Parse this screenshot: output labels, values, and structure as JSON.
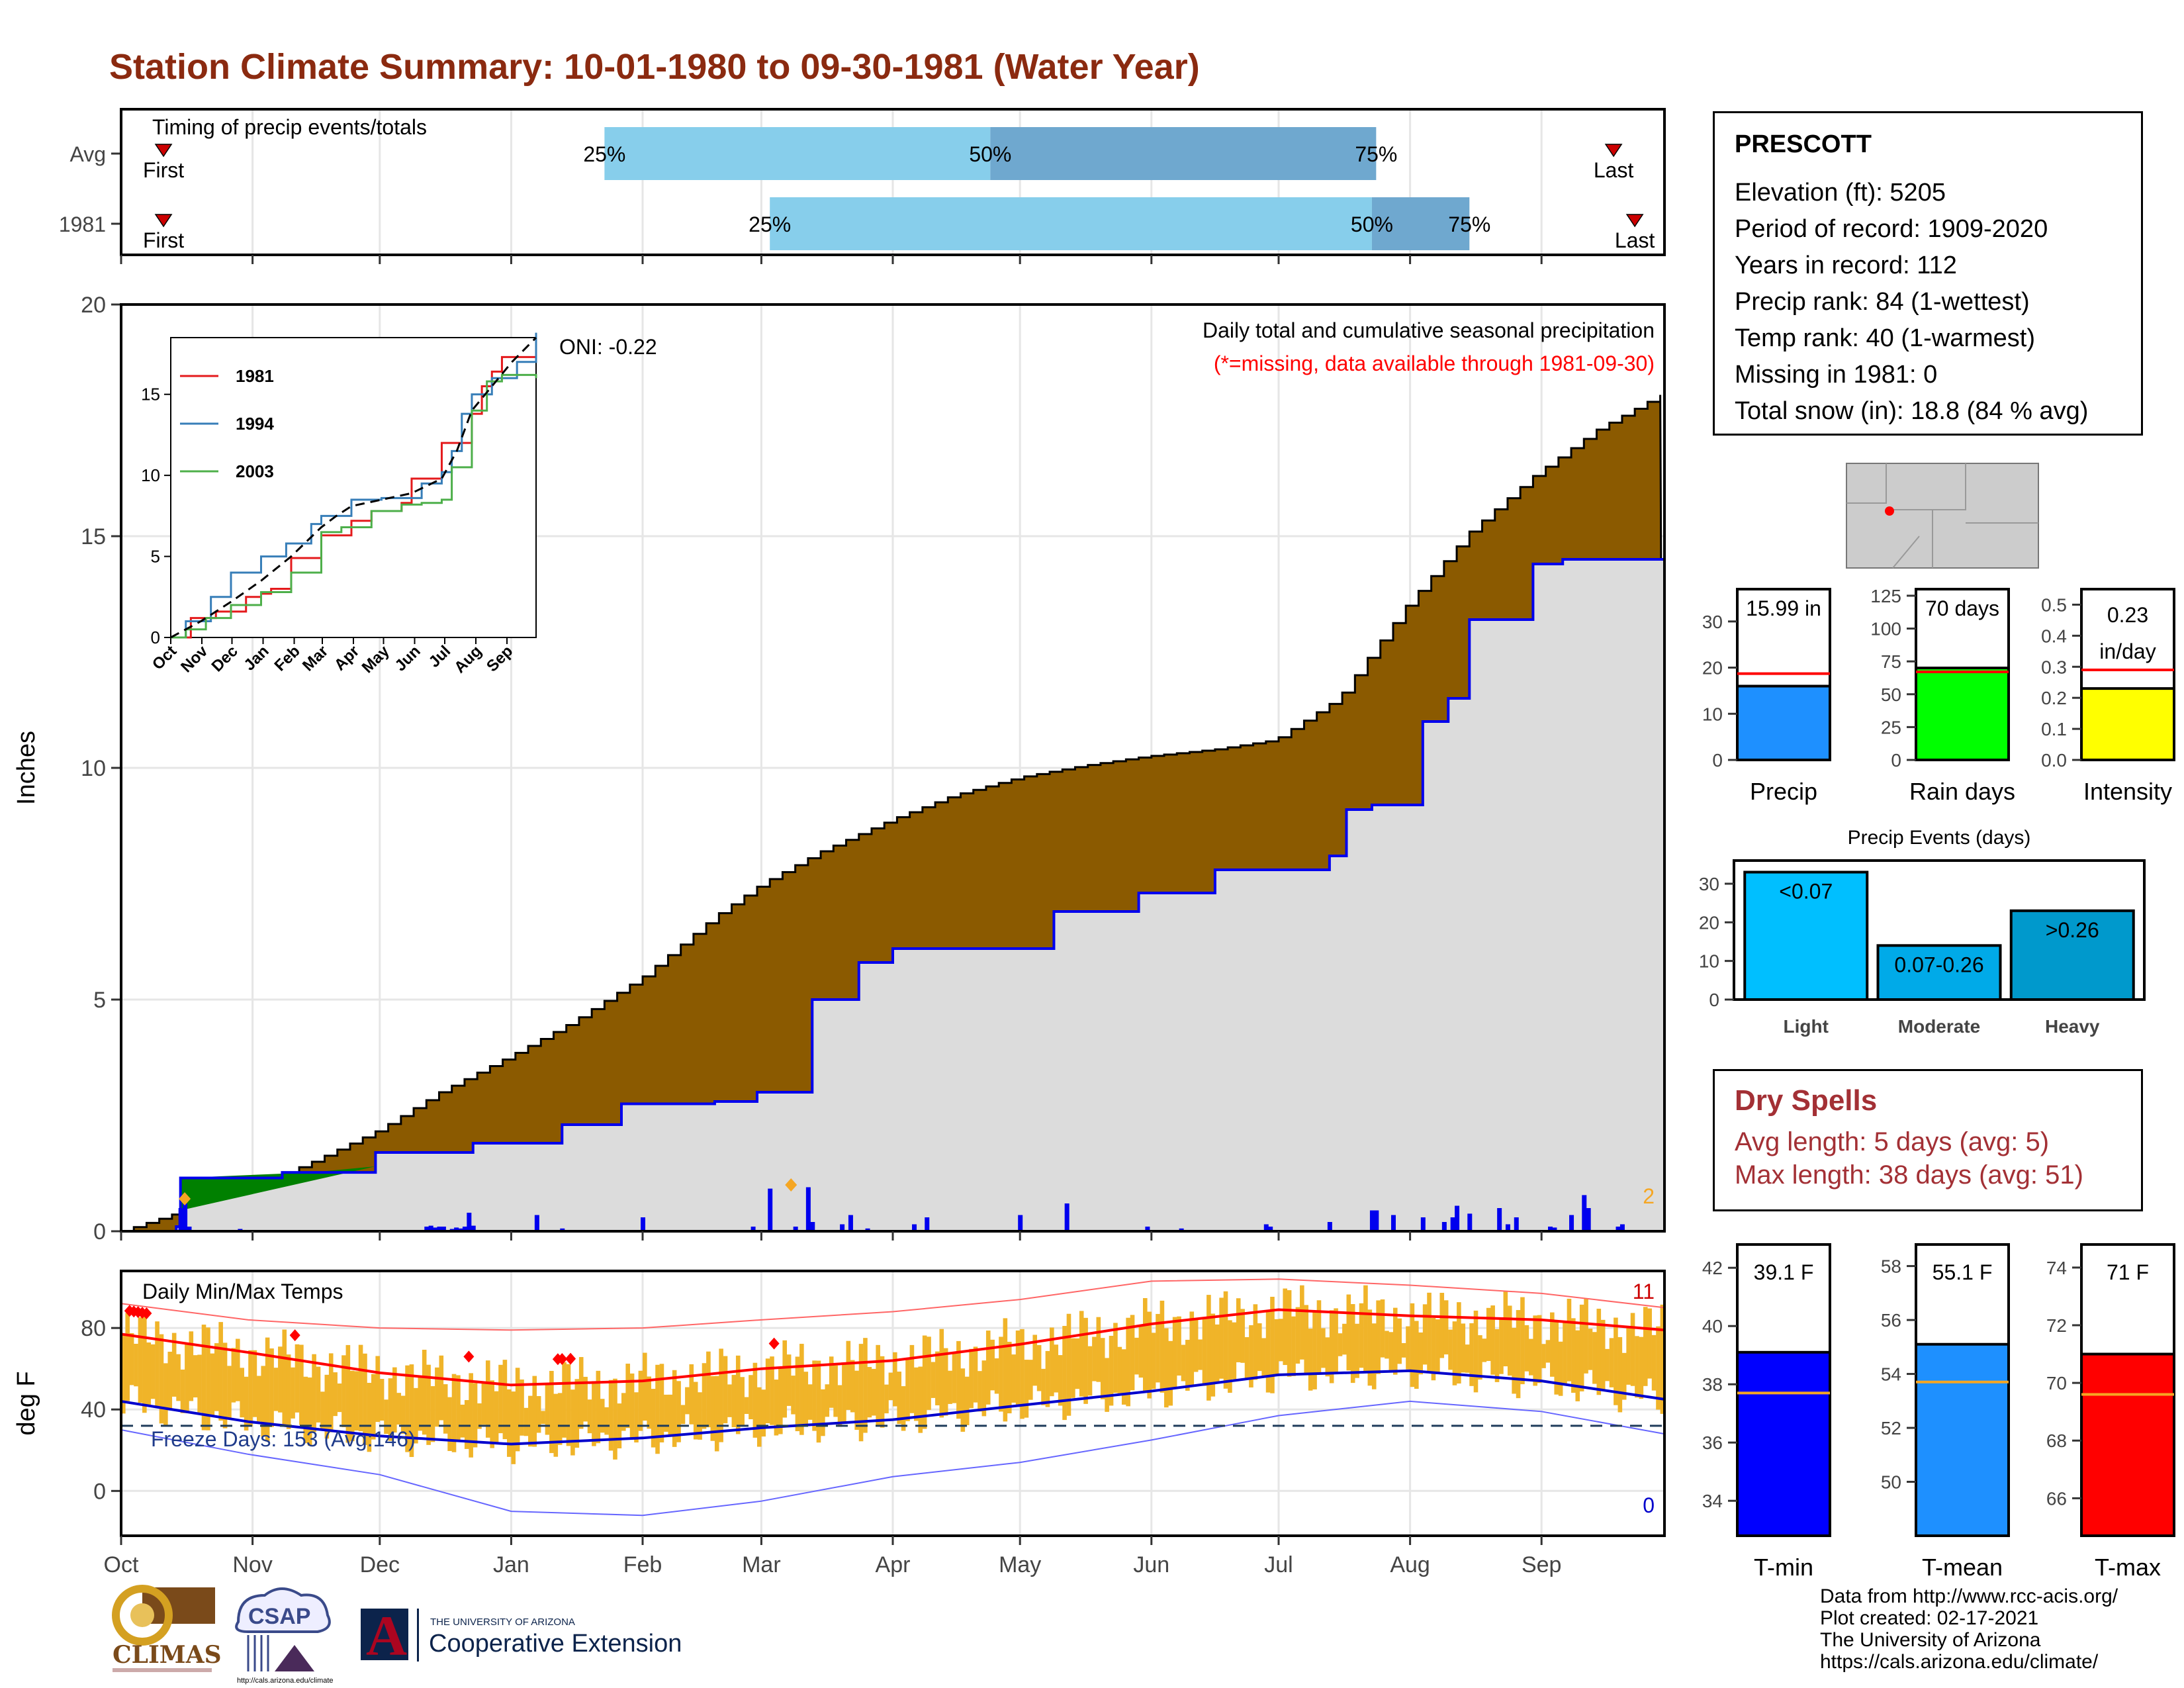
{
  "title": "Station Climate Summary: 10-01-1980 to 09-30-1981 (Water Year)",
  "station": {
    "name": "PRESCOTT",
    "lines": [
      "Elevation (ft): 5205",
      "Period of record: 1909-2020",
      "Years in record: 112",
      "Precip rank: 84 (1-wettest)",
      "Temp rank: 40 (1-warmest)",
      "Missing in 1981: 0",
      "Total snow (in): 18.8 (84 % avg)"
    ]
  },
  "dry_spells": {
    "title": "Dry Spells",
    "avg_length": "Avg length: 5 days (avg: 5)",
    "max_length": "Max length: 38 days (avg: 51)"
  },
  "credits": [
    "Data from http://www.rcc-acis.org/",
    "Plot created: 02-17-2021",
    "The University of Arizona",
    "https://cals.arizona.edu/climate/"
  ],
  "logos": {
    "climas": "CLIMAS",
    "csap": "CSAP",
    "csap_url": "http://cals.arizona.edu/climate",
    "ua_letter": "A",
    "ua_small": "THE UNIVERSITY OF ARIZONA",
    "ua_big": "Cooperative Extension"
  },
  "colors": {
    "title": "#8b2a10",
    "cum_avg": "#8b5a00",
    "cum_obs": "#dcdcdc",
    "cum_obs_line": "#0000ee",
    "wet_surplus": "#008000",
    "bar_light": "#87ceeb",
    "bar_dark": "#6fa8cf",
    "temp_bar": "#f0b429",
    "tmax_line": "#ff0000",
    "tmin_line": "#0000cc",
    "dry": "#a33035"
  },
  "chart_data": [
    {
      "type": "bar",
      "name": "timing",
      "label": "Timing of precip events/totals",
      "months": [
        "Oct",
        "Nov",
        "Dec",
        "Jan",
        "Feb",
        "Mar",
        "Apr",
        "May",
        "Jun",
        "Jul",
        "Aug",
        "Sep"
      ],
      "rows": [
        {
          "label": "Avg",
          "first_day": 10,
          "last_day": 352,
          "p25_day": 114,
          "p50_day": 205,
          "p75_day": 296,
          "first_label": "First",
          "last_label": "Last",
          "p25_label": "25%",
          "p50_label": "50%",
          "p75_label": "75%"
        },
        {
          "label": "1981",
          "first_day": 10,
          "last_day": 357,
          "p25_day": 153,
          "p50_day": 295,
          "p75_day": 318,
          "first_label": "First",
          "last_label": "Last",
          "p25_label": "25%",
          "p50_label": "50%",
          "p75_label": "75%"
        }
      ]
    },
    {
      "type": "area",
      "name": "cumulative_precip",
      "ylabel": "Inches",
      "ylim": [
        0,
        20
      ],
      "yticks": [
        0,
        5,
        10,
        15,
        20
      ],
      "xticks": [
        "Oct",
        "Nov",
        "Dec",
        "Jan",
        "Feb",
        "Mar",
        "Apr",
        "May",
        "Jun",
        "Jul",
        "Aug",
        "Sep"
      ],
      "note": "Daily total and cumulative seasonal precipitation",
      "missing_note": "(*=missing, data available through 1981-09-30)",
      "oni": "ONI: -0.22",
      "count_label": "2",
      "avg_cumulative": {
        "day": [
          0,
          10,
          20,
          31,
          45,
          61,
          75,
          92,
          106,
          123,
          140,
          151,
          165,
          182,
          196,
          212,
          227,
          242,
          258,
          272,
          287,
          295,
          303,
          318,
          333,
          348,
          364
        ],
        "value": [
          0,
          0.3,
          0.6,
          0.95,
          1.5,
          2.2,
          3.0,
          3.8,
          4.5,
          5.5,
          6.8,
          7.5,
          8.2,
          8.9,
          9.4,
          9.8,
          10.05,
          10.25,
          10.4,
          10.6,
          11.5,
          12.5,
          13.5,
          15.1,
          16.3,
          17.3,
          18.1
        ]
      },
      "obs_cumulative": {
        "day": [
          0,
          13,
          14,
          26,
          38,
          45,
          60,
          78,
          83,
          104,
          118,
          125,
          140,
          150,
          160,
          163,
          174,
          182,
          197,
          220,
          240,
          258,
          280,
          285,
          289,
          295,
          302,
          307,
          313,
          318,
          333,
          340,
          364
        ],
        "value": [
          0,
          0.1,
          1.15,
          1.15,
          1.27,
          1.27,
          1.7,
          1.7,
          1.9,
          2.3,
          2.75,
          2.75,
          2.8,
          3.0,
          3.0,
          5.0,
          5.8,
          6.1,
          6.1,
          6.9,
          7.3,
          7.8,
          7.8,
          8.1,
          9.1,
          9.2,
          9.2,
          11.0,
          11.5,
          13.2,
          14.4,
          14.5,
          16.0
        ]
      },
      "daily_bars": {
        "day": [
          14,
          15,
          16,
          28,
          72,
          73,
          74,
          75,
          76,
          78,
          79,
          80,
          81,
          82,
          83,
          98,
          104,
          123,
          149,
          153,
          159,
          162,
          163,
          170,
          172,
          176,
          187,
          190,
          212,
          223,
          242,
          250,
          270,
          271,
          285,
          295,
          296,
          300,
          307,
          312,
          314,
          315,
          318,
          325,
          327,
          329,
          337,
          338,
          342,
          345,
          346,
          353,
          354
        ],
        "value": [
          0.5,
          0.6,
          0.1,
          0.05,
          0.1,
          0.12,
          0.08,
          0.1,
          0.1,
          0.05,
          0.08,
          0.06,
          0.1,
          0.4,
          0.12,
          0.35,
          0.06,
          0.3,
          0.1,
          0.92,
          0.1,
          0.95,
          0.2,
          0.15,
          0.35,
          0.06,
          0.15,
          0.3,
          0.35,
          0.6,
          0.1,
          0.06,
          0.15,
          0.1,
          0.2,
          0.45,
          0.45,
          0.35,
          0.3,
          0.2,
          0.3,
          0.55,
          0.38,
          0.5,
          0.15,
          0.3,
          0.1,
          0.08,
          0.35,
          0.78,
          0.5,
          0.1,
          0.15
        ]
      },
      "snow_markers": {
        "day": [
          15,
          158
        ],
        "value": [
          0.7,
          1.0
        ]
      }
    },
    {
      "type": "line",
      "name": "inset_cumulative_compare",
      "yticks": [
        0,
        5,
        10,
        15
      ],
      "ylim": [
        0,
        18.5
      ],
      "xticks": [
        "Oct",
        "Nov",
        "Dec",
        "Jan",
        "Feb",
        "Mar",
        "Apr",
        "May",
        "Jun",
        "Jul",
        "Aug",
        "Sep"
      ],
      "series": [
        {
          "name": "1981",
          "color": "#e41a1c",
          "x": [
            0,
            20,
            45,
            75,
            90,
            100,
            120,
            150,
            180,
            200,
            230,
            240,
            270,
            300,
            310,
            320,
            330,
            364
          ],
          "y": [
            0,
            1.2,
            1.6,
            2.5,
            2.7,
            3.0,
            4.9,
            6.3,
            7.2,
            7.8,
            8.3,
            9.8,
            12.0,
            13.8,
            15.5,
            16.4,
            17.3,
            17.8
          ]
        },
        {
          "name": "1994",
          "color": "#377eb8",
          "x": [
            0,
            15,
            40,
            60,
            90,
            115,
            140,
            150,
            180,
            210,
            230,
            250,
            270,
            280,
            290,
            300,
            320,
            345,
            364
          ],
          "y": [
            0,
            1.0,
            2.5,
            4.0,
            5.0,
            5.8,
            7.0,
            7.5,
            8.5,
            8.6,
            8.6,
            9.5,
            10.2,
            11.5,
            13.8,
            15.0,
            16.0,
            17.0,
            18.8
          ]
        },
        {
          "name": "2003",
          "color": "#4daf4a",
          "x": [
            0,
            15,
            35,
            60,
            90,
            120,
            150,
            170,
            200,
            230,
            250,
            270,
            280,
            300,
            315,
            330,
            364
          ],
          "y": [
            0,
            0.5,
            1.2,
            2.0,
            2.8,
            4.0,
            6.5,
            6.8,
            7.8,
            8.2,
            8.3,
            8.5,
            10.5,
            14.0,
            15.8,
            16.2,
            16.0
          ]
        },
        {
          "name": "",
          "color": "#000000",
          "dashed": true,
          "x": [
            0,
            30,
            60,
            90,
            120,
            150,
            165,
            180,
            210,
            240,
            270,
            285,
            300,
            320,
            340,
            364
          ],
          "y": [
            0,
            1.0,
            2.2,
            3.5,
            5.0,
            6.8,
            7.5,
            8.1,
            8.5,
            8.9,
            9.8,
            11.5,
            14.0,
            15.5,
            17.0,
            18.5
          ]
        }
      ]
    },
    {
      "type": "line",
      "name": "daily_temps",
      "label": "Daily Min/Max Temps",
      "ylabel": "deg F",
      "ylim": [
        -22,
        108
      ],
      "yticks": [
        0,
        40,
        80
      ],
      "xticks": [
        "Oct",
        "Nov",
        "Dec",
        "Jan",
        "Feb",
        "Mar",
        "Apr",
        "May",
        "Jun",
        "Jul",
        "Aug",
        "Sep"
      ],
      "freeze_label": "Freeze Days: 153 (Avg:146)",
      "freeze_line": 32,
      "record_high_count": "11",
      "record_low_count": "0",
      "avg_tmax": {
        "day": [
          0,
          30,
          61,
          92,
          123,
          151,
          182,
          212,
          243,
          273,
          304,
          335,
          364
        ],
        "value": [
          77,
          68,
          58,
          52,
          54,
          60,
          64,
          72,
          82,
          89,
          86,
          84,
          79
        ]
      },
      "avg_tmin": {
        "day": [
          0,
          30,
          61,
          92,
          123,
          151,
          182,
          212,
          243,
          273,
          304,
          335,
          364
        ],
        "value": [
          44,
          34,
          27,
          23,
          26,
          31,
          35,
          42,
          49,
          57,
          59,
          54,
          45
        ]
      },
      "rec_max": {
        "day": [
          0,
          30,
          61,
          92,
          123,
          151,
          182,
          212,
          243,
          273,
          304,
          335,
          364
        ],
        "value": [
          92,
          84,
          80,
          79,
          80,
          84,
          88,
          94,
          103,
          104,
          101,
          97,
          90
        ]
      },
      "rec_min": {
        "day": [
          0,
          30,
          61,
          92,
          123,
          151,
          182,
          212,
          243,
          273,
          304,
          335,
          364
        ],
        "value": [
          30,
          18,
          8,
          -10,
          -12,
          -5,
          7,
          14,
          25,
          37,
          44,
          39,
          28
        ]
      },
      "record_high_days": [
        2,
        3,
        4,
        5,
        6,
        41,
        82,
        103,
        104,
        106,
        154
      ]
    },
    {
      "type": "bar",
      "name": "precip_gauges",
      "items": [
        {
          "category": "Precip",
          "value": 15.99,
          "avg": 18.7,
          "label": "15.99 in",
          "ylim": [
            0,
            37
          ],
          "yticks": [
            0,
            10,
            20,
            30
          ],
          "color": "#1e90ff"
        },
        {
          "category": "Rain days",
          "value": 70,
          "avg": 67,
          "label": "70 days",
          "ylim": [
            0,
            130
          ],
          "yticks": [
            0,
            25,
            50,
            75,
            100,
            125
          ],
          "color": "#00ff00"
        },
        {
          "category": "Intensity",
          "value": 0.23,
          "avg": 0.29,
          "label": "0.23",
          "unit": "in/day",
          "ylim": [
            0,
            0.55
          ],
          "yticks": [
            0.0,
            0.1,
            0.2,
            0.3,
            0.4,
            0.5
          ],
          "color": "#ffff00"
        }
      ]
    },
    {
      "type": "bar",
      "name": "precip_events",
      "title": "Precip Events (days)",
      "categories": [
        "Light",
        "Moderate",
        "Heavy"
      ],
      "values": [
        33,
        14,
        23
      ],
      "labels": [
        "<0.07",
        "0.07-0.26",
        ">0.26"
      ],
      "colors": [
        "#00bfff",
        "#00aae8",
        "#0099cc"
      ],
      "ylim": [
        0,
        36
      ],
      "yticks": [
        0,
        10,
        20,
        30
      ]
    },
    {
      "type": "bar",
      "name": "temp_gauges",
      "items": [
        {
          "category": "T-min",
          "value": 39.1,
          "avg": 37.7,
          "label": "39.1 F",
          "ylim": [
            32.8,
            42.8
          ],
          "yticks": [
            34,
            36,
            38,
            40,
            42
          ],
          "color": "#0000ff"
        },
        {
          "category": "T-mean",
          "value": 55.1,
          "avg": 53.7,
          "label": "55.1 F",
          "ylim": [
            48.0,
            58.8
          ],
          "yticks": [
            50,
            52,
            54,
            56,
            58
          ],
          "color": "#1e90ff"
        },
        {
          "category": "T-max",
          "value": 71,
          "avg": 69.6,
          "label": "71 F",
          "ylim": [
            64.7,
            74.8
          ],
          "yticks": [
            66,
            68,
            70,
            72,
            74
          ],
          "color": "#ff0000"
        }
      ]
    }
  ]
}
